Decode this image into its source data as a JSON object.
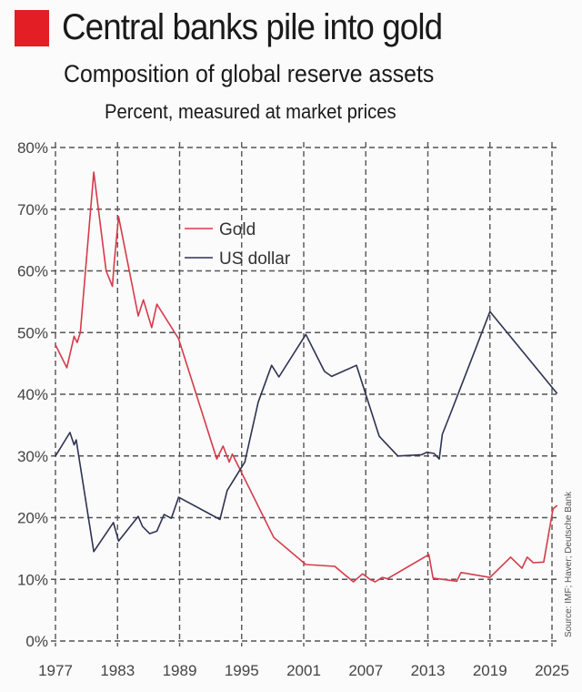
{
  "header": {
    "title": "Central banks pile into gold",
    "subtitle": "Composition of global reserve assets",
    "unit": "Percent, measured at market prices",
    "accent_color": "#e31e24"
  },
  "source": "Source: IMF; Haver; Deutsche Bank",
  "chart_data": {
    "type": "line",
    "title": "Composition of global reserve assets",
    "subtitle": "Percent, measured at market prices",
    "xlabel": "",
    "ylabel": "Percent",
    "xlim": [
      1977,
      2025
    ],
    "ylim": [
      0,
      80
    ],
    "grid": true,
    "legend_position": "upper-center",
    "x_ticks": [
      1977,
      1983,
      1989,
      1995,
      2001,
      2007,
      2013,
      2019,
      2025
    ],
    "x_tick_labels": [
      "1977",
      "1983",
      "1989",
      "1995",
      "2001",
      "2007",
      "2013",
      "2019",
      "2025"
    ],
    "y_ticks": [
      0,
      10,
      20,
      30,
      40,
      50,
      60,
      70,
      80
    ],
    "y_tick_labels": [
      "0%",
      "10%",
      "20%",
      "30%",
      "40%",
      "50%",
      "60%",
      "70%",
      "80%"
    ],
    "series": [
      {
        "name": "Gold",
        "color": "#d63a4a",
        "x": [
          1977,
          1978.1,
          1978.8,
          1979.1,
          1979.4,
          1980.7,
          1981.9,
          1982.5,
          1982.7,
          1983.1,
          1985.0,
          1985.5,
          1986.3,
          1986.8,
          1988.9,
          1992.6,
          1993.2,
          1993.8,
          1994.1,
          1998.1,
          2001.2,
          2004.0,
          2005.8,
          2006.7,
          2007.4,
          2007.9,
          2008.6,
          2009.1,
          2013.1,
          2013.5,
          2015.8,
          2016.2,
          2019.0,
          2021.0,
          2022.1,
          2022.6,
          2023.2,
          2024.2,
          2025.1,
          2025.5
        ],
        "values": [
          48,
          44.3,
          49.4,
          48.4,
          50,
          76,
          60,
          57.5,
          61.7,
          68.8,
          52.7,
          55.3,
          50.8,
          54.6,
          49,
          29.5,
          31.6,
          29,
          30.3,
          16.8,
          12.4,
          12.1,
          9.6,
          10.9,
          10,
          9.6,
          10.3,
          10.1,
          14,
          10.2,
          9.7,
          11.1,
          10.3,
          13.6,
          11.8,
          13.6,
          12.7,
          12.8,
          21.4,
          22
        ]
      },
      {
        "name": "US dollar",
        "color": "#2e3352",
        "x": [
          1977,
          1978.4,
          1978.8,
          1979.0,
          1980.7,
          1982.6,
          1983.1,
          1985.0,
          1985.4,
          1986.1,
          1986.8,
          1987.5,
          1988.2,
          1988.9,
          1992.9,
          1993.6,
          1995.3,
          1996.6,
          1997.9,
          1998.6,
          2001.2,
          2003.0,
          2003.7,
          2006.1,
          2008.3,
          2008.8,
          2010.1,
          2012.4,
          2012.9,
          2013.6,
          2014.1,
          2014.4,
          2015.2,
          2019.0,
          2025.5
        ],
        "values": [
          30,
          33.8,
          31.8,
          32.6,
          14.5,
          19.2,
          16.2,
          20.2,
          18.6,
          17.4,
          17.8,
          20.5,
          19.9,
          23.3,
          19.7,
          24.4,
          29,
          38.7,
          44.7,
          42.8,
          49.7,
          43.7,
          42.9,
          44.7,
          33.2,
          32.3,
          30,
          30.2,
          30.6,
          30.4,
          29.5,
          33.5,
          36.9,
          53.4,
          40.1
        ]
      }
    ]
  }
}
